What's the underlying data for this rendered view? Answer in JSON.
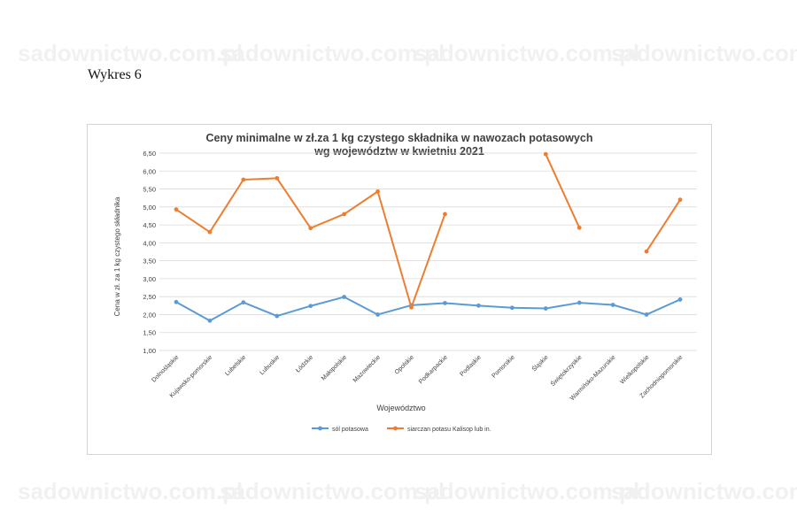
{
  "page": {
    "heading": "Wykres 6",
    "watermark": "sadownictwo.com.pl"
  },
  "colors": {
    "series_blue": "#5b9bd5",
    "series_orange": "#ed7d31",
    "grid": "#d9d9d9",
    "text": "#404040"
  },
  "chart_data": {
    "type": "line",
    "title_lines": [
      "Ceny minimalne w zł.za 1 kg czystego składnika w nawozach potasowych",
      "wg województw w kwietniu 2021"
    ],
    "xlabel": "Województwo",
    "ylabel": "Cena w zł. za 1 kg czystego składnika",
    "ylim": [
      1.0,
      6.5
    ],
    "yticks": [
      "1,00",
      "1,50",
      "2,00",
      "2,50",
      "3,00",
      "3,50",
      "4,00",
      "4,50",
      "5,00",
      "5,50",
      "6,00",
      "6,50"
    ],
    "grid": true,
    "legend_position": "bottom",
    "categories": [
      "Dolnośląskie",
      "Kujawsko-pomorskie",
      "Lubelskie",
      "Lubuskie",
      "Łódzkie",
      "Małopolskie",
      "Mazowieckie",
      "Opolskie",
      "Podkarpackie",
      "Podlaskie",
      "Pomorskie",
      "Śląskie",
      "Świętokrzyskie",
      "Warmińsko-Mazurskie",
      "Wielkopolskie",
      "Zachodniopomorskie"
    ],
    "series": [
      {
        "name": "sól potasowa",
        "color": "#5b9bd5",
        "values": [
          2.35,
          1.83,
          2.34,
          1.96,
          2.24,
          2.49,
          2.0,
          2.26,
          2.32,
          2.25,
          2.19,
          2.17,
          2.33,
          2.27,
          2.0,
          2.42
        ]
      },
      {
        "name": "siarczan potasu Kalisop lub in.",
        "color": "#ed7d31",
        "values": [
          4.93,
          4.3,
          5.76,
          5.8,
          4.41,
          4.8,
          5.43,
          2.2,
          4.8,
          null,
          null,
          6.47,
          4.42,
          null,
          3.76,
          5.2
        ]
      }
    ]
  }
}
